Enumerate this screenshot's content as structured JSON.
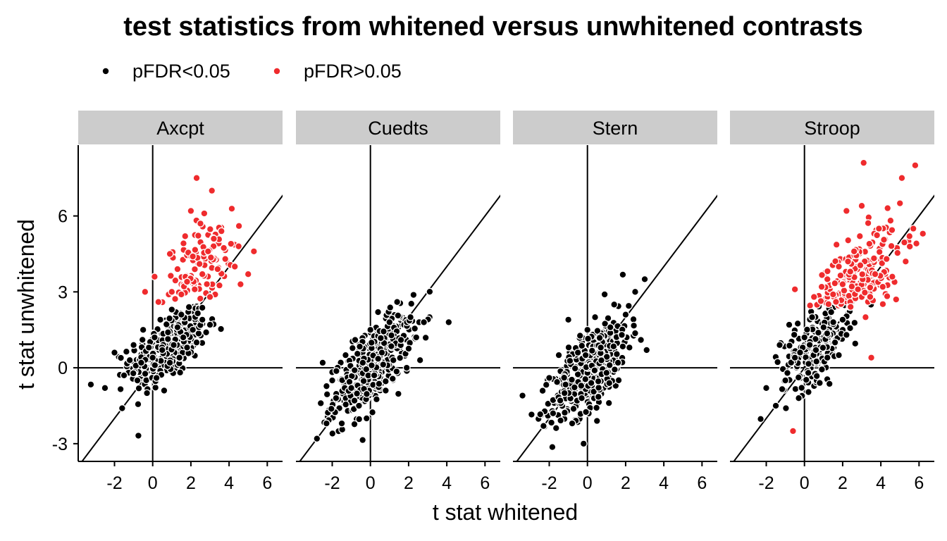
{
  "chart_data": {
    "type": "scatter",
    "title": "test statistics from whitened versus unwhitened contrasts",
    "xlabel": "t stat whitened",
    "ylabel": "t stat unwhitened",
    "xlim": [
      -3.9,
      6.8
    ],
    "ylim": [
      -3.7,
      8.8
    ],
    "x_ticks": [
      "-2",
      "0",
      "2",
      "4",
      "6"
    ],
    "y_ticks": [
      "-3",
      "0",
      "3",
      "6"
    ],
    "reference_lines": [
      "x = 0",
      "y = 0",
      "y = x"
    ],
    "grid": false,
    "legend_position": "top",
    "legend": [
      {
        "label": "pFDR<0.05",
        "color": "#000000"
      },
      {
        "label": "pFDR>0.05",
        "color": "#ef2b2d"
      }
    ],
    "series": [
      {
        "name": "pFDR<0.05",
        "color": "#000000"
      },
      {
        "name": "pFDR>0.05",
        "color": "#ef2b2d"
      }
    ],
    "panels": [
      {
        "name": "Axcpt",
        "black_points": [
          [
            -2.5,
            -0.8
          ],
          [
            -2.0,
            0.6
          ],
          [
            -1.6,
            -1.6
          ],
          [
            -1.5,
            -0.3
          ],
          [
            -1.2,
            0.3
          ],
          [
            -1.0,
            0.9
          ],
          [
            -0.8,
            -0.5
          ],
          [
            -0.6,
            0.2
          ],
          [
            -0.5,
            1.5
          ],
          [
            -0.3,
            -1.0
          ],
          [
            -0.2,
            0.8
          ],
          [
            0.0,
            0.4
          ],
          [
            0.1,
            1.2
          ],
          [
            0.2,
            -0.4
          ],
          [
            0.4,
            1.9
          ],
          [
            0.5,
            0.7
          ],
          [
            0.6,
            -0.9
          ],
          [
            0.8,
            1.4
          ],
          [
            0.9,
            0.2
          ],
          [
            1.0,
            2.3
          ],
          [
            1.1,
            0.9
          ],
          [
            1.3,
            1.6
          ],
          [
            1.4,
            0.4
          ],
          [
            1.5,
            2.1
          ],
          [
            1.6,
            1.2
          ],
          [
            1.8,
            0.8
          ],
          [
            1.9,
            2.4
          ],
          [
            2.1,
            1.5
          ],
          [
            2.3,
            1.0
          ],
          [
            2.6,
            1.9
          ],
          [
            2.8,
            1.4
          ],
          [
            3.0,
            1.7
          ]
        ],
        "red_points": [
          [
            -0.4,
            3.0
          ],
          [
            0.1,
            3.6
          ],
          [
            0.3,
            2.6
          ],
          [
            0.9,
            4.5
          ],
          [
            1.0,
            3.0
          ],
          [
            1.3,
            3.9
          ],
          [
            1.5,
            2.9
          ],
          [
            1.7,
            5.2
          ],
          [
            1.8,
            3.4
          ],
          [
            2.0,
            6.2
          ],
          [
            2.1,
            4.4
          ],
          [
            2.2,
            3.1
          ],
          [
            2.3,
            7.5
          ],
          [
            2.5,
            5.7
          ],
          [
            2.6,
            3.7
          ],
          [
            2.7,
            6.1
          ],
          [
            2.9,
            4.6
          ],
          [
            3.0,
            2.8
          ],
          [
            3.1,
            7.0
          ],
          [
            3.2,
            5.1
          ],
          [
            3.4,
            3.9
          ],
          [
            3.6,
            5.4
          ],
          [
            3.8,
            4.3
          ],
          [
            4.1,
            4.9
          ],
          [
            4.3,
            4.0
          ],
          [
            4.5,
            4.8
          ],
          [
            4.6,
            3.3
          ],
          [
            5.0,
            3.7
          ],
          [
            5.3,
            4.6
          ]
        ],
        "black_count_approx": 320,
        "red_count_approx": 120
      },
      {
        "name": "Cuedts",
        "black_points": [
          [
            -2.8,
            -2.8
          ],
          [
            -2.6,
            -1.4
          ],
          [
            -2.5,
            0.2
          ],
          [
            -2.3,
            -2.2
          ],
          [
            -2.0,
            -0.5
          ],
          [
            -1.8,
            -1.2
          ],
          [
            -1.5,
            -2.2
          ],
          [
            -1.3,
            0.5
          ],
          [
            -1.0,
            -0.8
          ],
          [
            -0.8,
            1.1
          ],
          [
            -0.6,
            -1.5
          ],
          [
            -0.4,
            0.2
          ],
          [
            -0.2,
            -2.0
          ],
          [
            0.0,
            1.5
          ],
          [
            0.2,
            -0.3
          ],
          [
            0.4,
            2.2
          ],
          [
            0.6,
            0.6
          ],
          [
            0.8,
            -0.9
          ],
          [
            1.0,
            1.8
          ],
          [
            1.2,
            0.3
          ],
          [
            1.4,
            2.6
          ],
          [
            1.6,
            1.1
          ],
          [
            1.9,
            0.0
          ],
          [
            2.1,
            2.0
          ],
          [
            2.4,
            1.2
          ],
          [
            2.6,
            0.3
          ],
          [
            2.8,
            1.8
          ],
          [
            4.1,
            1.8
          ]
        ],
        "red_points": [],
        "black_count_approx": 450,
        "red_count_approx": 0
      },
      {
        "name": "Stern",
        "black_points": [
          [
            -3.4,
            -1.1
          ],
          [
            -2.3,
            -2.3
          ],
          [
            -2.0,
            -0.4
          ],
          [
            -1.8,
            -1.8
          ],
          [
            -1.5,
            0.5
          ],
          [
            -1.2,
            -1.0
          ],
          [
            -1.0,
            1.9
          ],
          [
            -0.8,
            -2.2
          ],
          [
            -0.5,
            0.6
          ],
          [
            -0.3,
            -1.2
          ],
          [
            -0.2,
            -3.0
          ],
          [
            0.0,
            1.5
          ],
          [
            0.2,
            -0.6
          ],
          [
            0.4,
            2.0
          ],
          [
            0.5,
            -2.1
          ],
          [
            0.7,
            0.8
          ],
          [
            0.9,
            2.9
          ],
          [
            1.0,
            -0.2
          ],
          [
            1.2,
            1.6
          ],
          [
            1.4,
            2.5
          ],
          [
            1.6,
            0.2
          ],
          [
            1.8,
            1.3
          ],
          [
            2.0,
            2.1
          ],
          [
            2.2,
            0.8
          ],
          [
            2.5,
            3.0
          ],
          [
            2.8,
            1.1
          ],
          [
            3.0,
            3.5
          ],
          [
            3.1,
            0.7
          ]
        ],
        "red_points": [],
        "black_count_approx": 450,
        "red_count_approx": 0
      },
      {
        "name": "Stroop",
        "black_points": [
          [
            -2.0,
            -0.8
          ],
          [
            -1.5,
            -1.5
          ],
          [
            -1.3,
            0.9
          ],
          [
            -1.0,
            -0.5
          ],
          [
            -0.8,
            1.7
          ],
          [
            -0.5,
            0.4
          ],
          [
            -0.3,
            -1.2
          ],
          [
            0.0,
            1.2
          ],
          [
            0.2,
            -0.2
          ],
          [
            0.4,
            2.0
          ],
          [
            0.6,
            0.7
          ],
          [
            0.8,
            -0.6
          ],
          [
            1.0,
            1.6
          ],
          [
            1.2,
            0.4
          ],
          [
            1.4,
            2.2
          ],
          [
            1.6,
            1.0
          ],
          [
            1.8,
            0.5
          ],
          [
            2.0,
            1.9
          ],
          [
            2.2,
            1.3
          ],
          [
            2.4,
            2.4
          ]
        ],
        "red_points": [
          [
            -0.6,
            -2.5
          ],
          [
            -0.5,
            3.1
          ],
          [
            0.5,
            2.8
          ],
          [
            0.9,
            3.2
          ],
          [
            1.2,
            3.5
          ],
          [
            1.5,
            2.9
          ],
          [
            1.8,
            4.0
          ],
          [
            2.0,
            3.3
          ],
          [
            2.2,
            6.2
          ],
          [
            2.4,
            3.8
          ],
          [
            2.6,
            4.6
          ],
          [
            2.8,
            3.1
          ],
          [
            2.9,
            5.2
          ],
          [
            3.0,
            6.4
          ],
          [
            3.1,
            8.1
          ],
          [
            3.2,
            2.0
          ],
          [
            3.4,
            4.9
          ],
          [
            3.5,
            0.4
          ],
          [
            3.7,
            3.7
          ],
          [
            3.9,
            5.5
          ],
          [
            4.1,
            3.2
          ],
          [
            4.3,
            4.3
          ],
          [
            4.6,
            3.6
          ],
          [
            4.8,
            2.7
          ],
          [
            5.0,
            6.5
          ],
          [
            5.1,
            7.5
          ],
          [
            5.3,
            4.2
          ],
          [
            5.5,
            5.2
          ],
          [
            5.7,
            5.5
          ],
          [
            5.8,
            8.0
          ],
          [
            6.2,
            5.3
          ]
        ],
        "black_count_approx": 220,
        "red_count_approx": 230
      }
    ]
  }
}
